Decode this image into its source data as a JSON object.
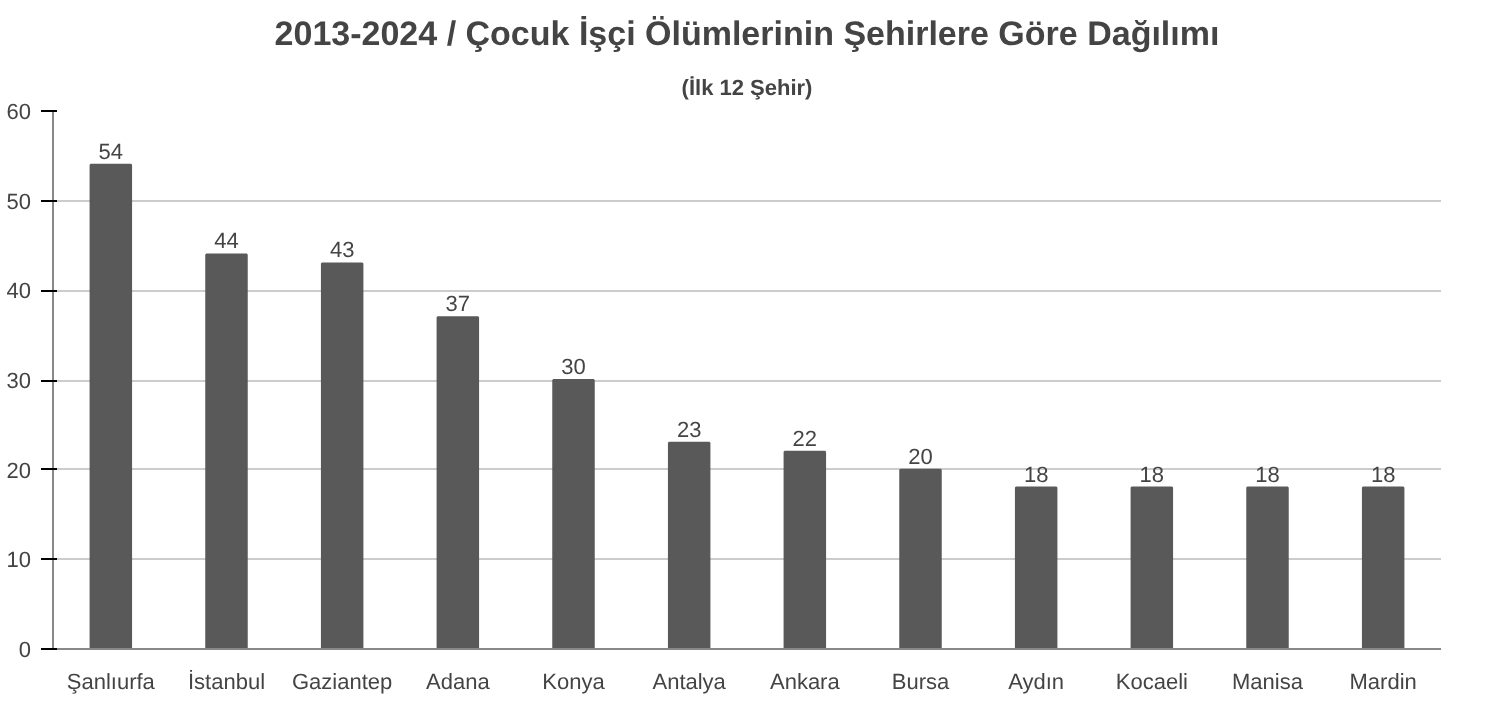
{
  "chart_data": {
    "type": "bar",
    "title": "2013-2024 / Çocuk İşçi Ölümlerinin Şehirlere Göre Dağılımı",
    "subtitle": "(İlk 12 Şehir)",
    "categories": [
      "Şanlıurfa",
      "İstanbul",
      "Gaziantep",
      "Adana",
      "Konya",
      "Antalya",
      "Ankara",
      "Bursa",
      "Aydın",
      "Kocaeli",
      "Manisa",
      "Mardin"
    ],
    "values": [
      54,
      44,
      43,
      37,
      30,
      23,
      22,
      20,
      18,
      18,
      18,
      18
    ],
    "color": "#595959",
    "ylim": [
      0,
      60
    ],
    "yticks": [
      0,
      10,
      20,
      30,
      40,
      50,
      60
    ],
    "grid": "y",
    "data_labels": true
  }
}
